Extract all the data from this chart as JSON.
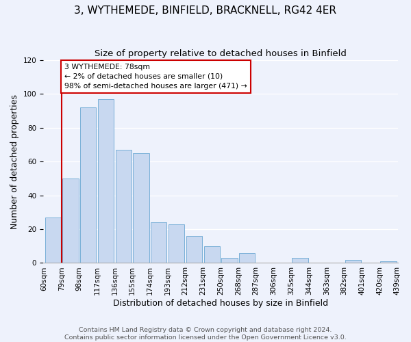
{
  "title": "3, WYTHEMEDE, BINFIELD, BRACKNELL, RG42 4ER",
  "subtitle": "Size of property relative to detached houses in Binfield",
  "xlabel": "Distribution of detached houses by size in Binfield",
  "ylabel": "Number of detached properties",
  "bin_labels": [
    "60sqm",
    "79sqm",
    "98sqm",
    "117sqm",
    "136sqm",
    "155sqm",
    "174sqm",
    "193sqm",
    "212sqm",
    "231sqm",
    "250sqm",
    "268sqm",
    "287sqm",
    "306sqm",
    "325sqm",
    "344sqm",
    "363sqm",
    "382sqm",
    "401sqm",
    "420sqm",
    "439sqm"
  ],
  "bar_heights": [
    27,
    50,
    92,
    97,
    67,
    65,
    24,
    23,
    16,
    10,
    3,
    6,
    0,
    0,
    3,
    0,
    0,
    2,
    0,
    1
  ],
  "bar_color": "#c8d8f0",
  "bar_edge_color": "#7ab0d8",
  "vline_x": 1,
  "vline_color": "#cc0000",
  "annotation_text": "3 WYTHEMEDE: 78sqm\n← 2% of detached houses are smaller (10)\n98% of semi-detached houses are larger (471) →",
  "annotation_box_color": "#ffffff",
  "annotation_box_edge_color": "#cc0000",
  "ylim": [
    0,
    120
  ],
  "yticks": [
    0,
    20,
    40,
    60,
    80,
    100,
    120
  ],
  "footer_line1": "Contains HM Land Registry data © Crown copyright and database right 2024.",
  "footer_line2": "Contains public sector information licensed under the Open Government Licence v3.0.",
  "bg_color": "#eef2fc",
  "title_fontsize": 11,
  "subtitle_fontsize": 9.5,
  "axis_label_fontsize": 9,
  "tick_fontsize": 7.5,
  "footer_fontsize": 6.8
}
